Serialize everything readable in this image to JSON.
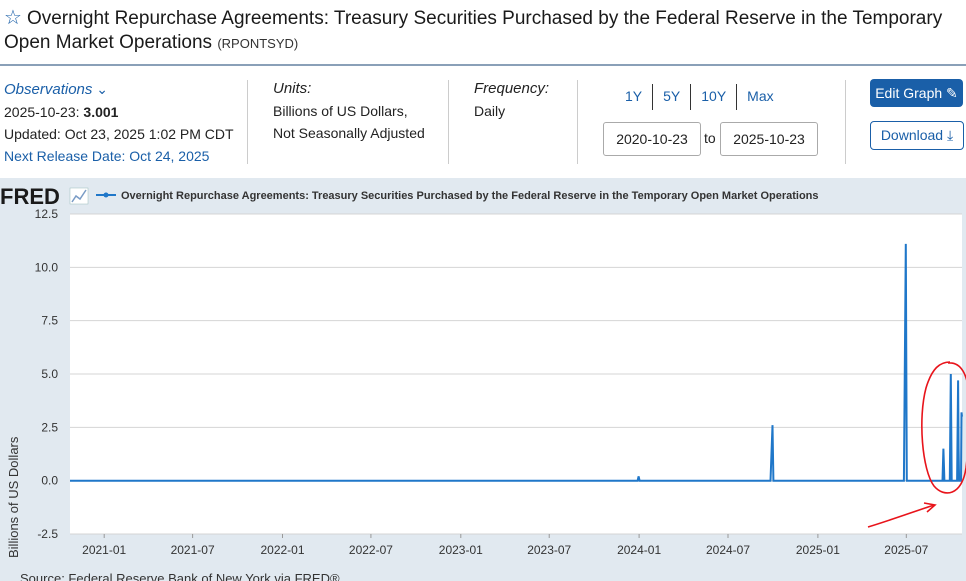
{
  "header": {
    "title": "Overnight Repurchase Agreements: Treasury Securities Purchased by the Federal Reserve in the Temporary Open Market Operations",
    "series_code": "(RPONTSYD)"
  },
  "observations": {
    "label": "Observations",
    "date": "2025-10-23:",
    "value": "3.001",
    "updated": "Updated: Oct 23, 2025 1:02 PM CDT",
    "next_release": "Next Release Date: Oct 24, 2025"
  },
  "units": {
    "label": "Units:",
    "line1": "Billions of US Dollars,",
    "line2": "Not Seasonally Adjusted"
  },
  "frequency": {
    "label": "Frequency:",
    "value": "Daily"
  },
  "range_buttons": [
    "1Y",
    "5Y",
    "10Y",
    "Max"
  ],
  "date_range": {
    "start": "2020-10-23",
    "to": "to",
    "end": "2025-10-23"
  },
  "buttons": {
    "edit": "Edit Graph",
    "download": "Download"
  },
  "fred_logo": "FRED",
  "colors": {
    "accent": "#1a5fa8",
    "line": "#1f77c9",
    "annotation": "#e8141b"
  },
  "source_text": "Source: Federal Reserve Bank of New York via FRED®",
  "chart_data": {
    "type": "line",
    "legend": "Overnight Repurchase Agreements: Treasury Securities Purchased by the Federal Reserve in the Temporary Open Market Operations",
    "ylabel": "Billions of US Dollars",
    "ylim": [
      -2.5,
      12.5
    ],
    "yticks": [
      "12.5",
      "10.0",
      "7.5",
      "5.0",
      "2.5",
      "0.0",
      "-2.5"
    ],
    "xlim": [
      "2020-10-23",
      "2025-10-23"
    ],
    "xticks": [
      "2021-01",
      "2021-07",
      "2022-01",
      "2022-07",
      "2023-01",
      "2023-07",
      "2024-01",
      "2024-07",
      "2025-01",
      "2025-07"
    ],
    "series": [
      {
        "points": [
          [
            "2020-10-23",
            0.0
          ],
          [
            "2023-12-29",
            0.0
          ],
          [
            "2023-12-31",
            0.2
          ],
          [
            "2024-01-02",
            0.0
          ],
          [
            "2024-09-26",
            0.0
          ],
          [
            "2024-09-30",
            2.6
          ],
          [
            "2024-10-02",
            0.0
          ],
          [
            "2025-06-26",
            0.0
          ],
          [
            "2025-06-30",
            11.1
          ],
          [
            "2025-07-02",
            0.0
          ],
          [
            "2025-09-13",
            0.0
          ],
          [
            "2025-09-15",
            1.5
          ],
          [
            "2025-09-17",
            0.0
          ],
          [
            "2025-09-28",
            0.0
          ],
          [
            "2025-09-30",
            5.0
          ],
          [
            "2025-10-02",
            0.0
          ],
          [
            "2025-10-13",
            0.0
          ],
          [
            "2025-10-15",
            4.7
          ],
          [
            "2025-10-16",
            1.5
          ],
          [
            "2025-10-17",
            0.0
          ],
          [
            "2025-10-21",
            0.0
          ],
          [
            "2025-10-22",
            3.2
          ],
          [
            "2025-10-23",
            3.001
          ]
        ]
      }
    ]
  }
}
